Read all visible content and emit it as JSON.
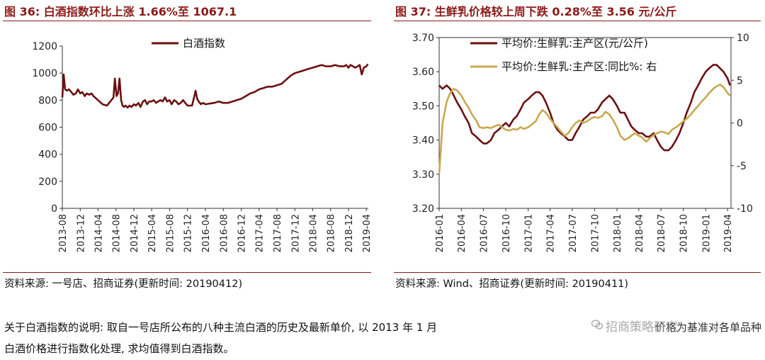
{
  "left_panel": {
    "title": "图 36:  白酒指数环比上涨 1.66%至 1067.1",
    "source": "资料来源:  一号店、招商证券(更新时间:  20190412)"
  },
  "right_panel": {
    "title": "图 37:  生鲜乳价格较上周下跌 0.28%至 3.56 元/公斤",
    "source": "资料来源:  Wind、招商证券(更新时间:  20190411)"
  },
  "note": {
    "line1": "关于白酒指数的说明:  取自一号店所公布的八种主流白酒的历史及最新单价,  以 2013 年 1 月",
    "line2": "白酒价格进行指数化处理,  求均值得到白酒指数。",
    "tail": "价格为基准对各单品种"
  },
  "watermark": "招商策略研究",
  "colors": {
    "title": "#8b1a1a",
    "liquor": "#6b1010",
    "milk_price": "#6b1010",
    "milk_yoy": "#c8a850"
  },
  "chart_data": [
    {
      "type": "line",
      "title": "",
      "legend": "top-center",
      "ylim": [
        0,
        1200
      ],
      "yticks": [
        "0",
        "200",
        "400",
        "600",
        "800",
        "1000",
        "1200"
      ],
      "xticks": [
        "2013-08",
        "2013-12",
        "2014-04",
        "2014-08",
        "2014-12",
        "2015-04",
        "2015-08",
        "2015-12",
        "2016-04",
        "2016-08",
        "2016-12",
        "2017-04",
        "2017-08",
        "2017-12",
        "2018-04",
        "2018-08",
        "2018-12",
        "2019-04"
      ],
      "series": [
        {
          "name": "白酒指数",
          "x": [
            "2013-08-01",
            "2013-08-10",
            "2013-08-20",
            "2013-09-01",
            "2013-09-15",
            "2013-10-01",
            "2013-10-15",
            "2013-11-01",
            "2013-11-15",
            "2013-12-01",
            "2013-12-15",
            "2014-01-01",
            "2014-01-15",
            "2014-02-01",
            "2014-02-15",
            "2014-03-01",
            "2014-04-01",
            "2014-05-01",
            "2014-06-01",
            "2014-07-01",
            "2014-07-15",
            "2014-07-25",
            "2014-08-05",
            "2014-08-15",
            "2014-08-25",
            "2014-09-05",
            "2014-09-15",
            "2014-09-25",
            "2014-10-05",
            "2014-10-20",
            "2014-11-01",
            "2014-11-15",
            "2014-12-01",
            "2014-12-15",
            "2015-01-01",
            "2015-01-15",
            "2015-02-01",
            "2015-02-15",
            "2015-03-01",
            "2015-03-15",
            "2015-04-01",
            "2015-04-15",
            "2015-05-01",
            "2015-05-15",
            "2015-06-01",
            "2015-06-15",
            "2015-07-01",
            "2015-07-15",
            "2015-08-01",
            "2015-08-15",
            "2015-09-01",
            "2015-09-15",
            "2015-10-01",
            "2015-10-15",
            "2015-11-01",
            "2015-11-15",
            "2015-12-01",
            "2015-12-15",
            "2016-01-01",
            "2016-01-15",
            "2016-01-25",
            "2016-02-05",
            "2016-02-15",
            "2016-03-01",
            "2016-03-15",
            "2016-04-01",
            "2016-05-01",
            "2016-06-01",
            "2016-07-01",
            "2016-08-01",
            "2016-09-01",
            "2016-10-01",
            "2016-11-01",
            "2016-12-01",
            "2017-01-01",
            "2017-02-01",
            "2017-03-01",
            "2017-04-01",
            "2017-05-01",
            "2017-06-01",
            "2017-07-01",
            "2017-08-01",
            "2017-09-01",
            "2017-10-01",
            "2017-11-01",
            "2017-12-01",
            "2018-01-01",
            "2018-02-01",
            "2018-03-01",
            "2018-04-01",
            "2018-05-01",
            "2018-06-01",
            "2018-07-01",
            "2018-08-01",
            "2018-09-01",
            "2018-10-01",
            "2018-11-01",
            "2018-11-15",
            "2018-12-01",
            "2018-12-15",
            "2019-01-01",
            "2019-01-15",
            "2019-02-01",
            "2019-02-15",
            "2019-03-01",
            "2019-03-15",
            "2019-04-01",
            "2019-04-12"
          ],
          "values": [
            820,
            990,
            880,
            870,
            880,
            860,
            840,
            850,
            880,
            850,
            860,
            830,
            850,
            840,
            850,
            830,
            800,
            770,
            760,
            800,
            820,
            960,
            830,
            850,
            960,
            800,
            760,
            750,
            760,
            745,
            760,
            750,
            770,
            760,
            780,
            750,
            790,
            800,
            770,
            790,
            790,
            800,
            780,
            790,
            800,
            790,
            820,
            790,
            800,
            770,
            800,
            790,
            770,
            780,
            800,
            780,
            760,
            760,
            760,
            820,
            870,
            810,
            790,
            770,
            780,
            770,
            775,
            780,
            790,
            780,
            780,
            790,
            800,
            810,
            830,
            850,
            860,
            880,
            890,
            900,
            900,
            910,
            920,
            950,
            980,
            1000,
            1010,
            1020,
            1030,
            1040,
            1050,
            1060,
            1050,
            1050,
            1060,
            1050,
            1050,
            1060,
            1040,
            1060,
            1050,
            1040,
            1050,
            1060,
            990,
            1040,
            1050,
            1067.1
          ]
        }
      ]
    },
    {
      "type": "line",
      "title": "",
      "legend": "top-center",
      "ylim": [
        3.2,
        3.7
      ],
      "y2lim": [
        -10,
        10
      ],
      "yticks": [
        "3.20",
        "3.30",
        "3.40",
        "3.50",
        "3.60",
        "3.70"
      ],
      "y2ticks": [
        "-10",
        "-5",
        "0",
        "5",
        "10"
      ],
      "xticks": [
        "2016-01",
        "2016-04",
        "2016-07",
        "2016-10",
        "2017-01",
        "2017-04",
        "2017-07",
        "2017-10",
        "2018-01",
        "2018-04",
        "2018-07",
        "2018-10",
        "2019-01",
        "2019-04"
      ],
      "series": [
        {
          "name": "平均价:生鲜乳:主产区(元/公斤)",
          "axis": "left",
          "x": [
            "2016-01-01",
            "2016-01-15",
            "2016-02-01",
            "2016-02-15",
            "2016-03-01",
            "2016-03-15",
            "2016-04-01",
            "2016-04-15",
            "2016-05-01",
            "2016-05-15",
            "2016-06-01",
            "2016-06-15",
            "2016-07-01",
            "2016-07-15",
            "2016-08-01",
            "2016-08-15",
            "2016-09-01",
            "2016-09-15",
            "2016-10-01",
            "2016-10-15",
            "2016-11-01",
            "2016-11-15",
            "2016-12-01",
            "2016-12-15",
            "2017-01-01",
            "2017-01-15",
            "2017-02-01",
            "2017-02-15",
            "2017-03-01",
            "2017-03-15",
            "2017-04-01",
            "2017-04-15",
            "2017-05-01",
            "2017-05-15",
            "2017-06-01",
            "2017-06-15",
            "2017-07-01",
            "2017-07-15",
            "2017-08-01",
            "2017-08-15",
            "2017-09-01",
            "2017-09-15",
            "2017-10-01",
            "2017-10-15",
            "2017-11-01",
            "2017-11-15",
            "2017-12-01",
            "2017-12-15",
            "2018-01-01",
            "2018-01-15",
            "2018-02-01",
            "2018-02-15",
            "2018-03-01",
            "2018-03-15",
            "2018-04-01",
            "2018-04-15",
            "2018-05-01",
            "2018-05-15",
            "2018-06-01",
            "2018-06-15",
            "2018-07-01",
            "2018-07-15",
            "2018-08-01",
            "2018-08-15",
            "2018-09-01",
            "2018-09-15",
            "2018-10-01",
            "2018-10-15",
            "2018-11-01",
            "2018-11-15",
            "2018-12-01",
            "2018-12-15",
            "2019-01-01",
            "2019-01-15",
            "2019-02-01",
            "2019-02-15",
            "2019-03-01",
            "2019-03-15",
            "2019-04-01",
            "2019-04-11"
          ],
          "values": [
            3.56,
            3.55,
            3.56,
            3.55,
            3.53,
            3.51,
            3.49,
            3.47,
            3.45,
            3.42,
            3.41,
            3.4,
            3.39,
            3.39,
            3.4,
            3.42,
            3.43,
            3.44,
            3.45,
            3.44,
            3.46,
            3.47,
            3.49,
            3.51,
            3.52,
            3.53,
            3.54,
            3.54,
            3.53,
            3.51,
            3.48,
            3.45,
            3.43,
            3.42,
            3.41,
            3.4,
            3.4,
            3.42,
            3.44,
            3.46,
            3.47,
            3.48,
            3.48,
            3.49,
            3.51,
            3.52,
            3.53,
            3.52,
            3.5,
            3.48,
            3.48,
            3.46,
            3.44,
            3.43,
            3.42,
            3.42,
            3.41,
            3.41,
            3.42,
            3.4,
            3.38,
            3.37,
            3.37,
            3.38,
            3.4,
            3.42,
            3.45,
            3.48,
            3.51,
            3.54,
            3.56,
            3.58,
            3.6,
            3.61,
            3.62,
            3.62,
            3.61,
            3.6,
            3.58,
            3.56
          ]
        },
        {
          "name": "平均价:生鲜乳:主产区:同比%:  右",
          "axis": "right",
          "x": [
            "2016-01-01",
            "2016-01-15",
            "2016-02-01",
            "2016-02-15",
            "2016-03-01",
            "2016-03-15",
            "2016-04-01",
            "2016-04-15",
            "2016-05-01",
            "2016-05-15",
            "2016-06-01",
            "2016-06-15",
            "2016-07-01",
            "2016-07-15",
            "2016-08-01",
            "2016-08-15",
            "2016-09-01",
            "2016-09-15",
            "2016-10-01",
            "2016-10-15",
            "2016-11-01",
            "2016-11-15",
            "2016-12-01",
            "2016-12-15",
            "2017-01-01",
            "2017-01-15",
            "2017-02-01",
            "2017-02-15",
            "2017-03-01",
            "2017-03-15",
            "2017-04-01",
            "2017-04-15",
            "2017-05-01",
            "2017-05-15",
            "2017-06-01",
            "2017-06-15",
            "2017-07-01",
            "2017-07-15",
            "2017-08-01",
            "2017-08-15",
            "2017-09-01",
            "2017-09-15",
            "2017-10-01",
            "2017-10-15",
            "2017-11-01",
            "2017-11-15",
            "2017-12-01",
            "2017-12-15",
            "2018-01-01",
            "2018-01-15",
            "2018-02-01",
            "2018-02-15",
            "2018-03-01",
            "2018-03-15",
            "2018-04-01",
            "2018-04-15",
            "2018-05-01",
            "2018-05-15",
            "2018-06-01",
            "2018-06-15",
            "2018-07-01",
            "2018-07-15",
            "2018-08-01",
            "2018-08-15",
            "2018-09-01",
            "2018-09-15",
            "2018-10-01",
            "2018-10-15",
            "2018-11-01",
            "2018-11-15",
            "2018-12-01",
            "2018-12-15",
            "2019-01-01",
            "2019-01-15",
            "2019-02-01",
            "2019-02-15",
            "2019-03-01",
            "2019-03-15",
            "2019-04-01",
            "2019-04-11"
          ],
          "values": [
            -6.0,
            0.0,
            2.5,
            3.5,
            4.0,
            3.8,
            3.2,
            2.5,
            1.8,
            1.0,
            0.3,
            -0.5,
            -0.6,
            -0.5,
            -0.6,
            -0.4,
            -0.2,
            -0.5,
            -0.8,
            -0.9,
            -0.7,
            -0.8,
            -0.5,
            -0.7,
            -0.5,
            -0.2,
            0.2,
            1.0,
            1.5,
            1.2,
            0.5,
            0.0,
            -0.5,
            -1.0,
            -1.5,
            -1.2,
            -0.5,
            0.0,
            0.3,
            0.0,
            0.2,
            0.5,
            0.7,
            0.6,
            0.8,
            1.3,
            1.0,
            0.4,
            -0.5,
            -1.5,
            -2.0,
            -1.8,
            -1.5,
            -1.2,
            -1.5,
            -1.7,
            -2.2,
            -1.8,
            -1.4,
            -1.2,
            -1.0,
            -1.1,
            -1.3,
            -0.8,
            -0.5,
            -0.2,
            0.2,
            0.5,
            1.0,
            1.5,
            2.0,
            2.5,
            3.0,
            3.5,
            4.0,
            4.3,
            4.5,
            4.2,
            3.5,
            3.2
          ]
        }
      ]
    }
  ]
}
